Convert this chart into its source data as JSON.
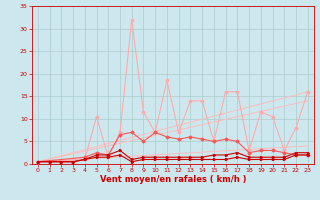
{
  "xlabel": "Vent moyen/en rafales ( km/h )",
  "xlabel_color": "#cc0000",
  "bg_color": "#cce8ee",
  "grid_color": "#aacccc",
  "xlim": [
    -0.5,
    23.5
  ],
  "ylim": [
    0,
    35
  ],
  "xticks": [
    0,
    1,
    2,
    3,
    4,
    5,
    6,
    7,
    8,
    9,
    10,
    11,
    12,
    13,
    14,
    15,
    16,
    17,
    18,
    19,
    20,
    21,
    22,
    23
  ],
  "yticks": [
    0,
    5,
    10,
    15,
    20,
    25,
    30,
    35
  ],
  "line3_x": [
    0,
    4,
    5,
    6,
    7,
    8,
    9,
    10,
    11,
    12,
    13,
    14,
    15,
    16,
    17,
    18,
    19,
    20,
    21,
    22,
    23
  ],
  "line3_y": [
    0.5,
    1,
    10.5,
    1.5,
    7,
    32,
    11.5,
    7,
    18.5,
    7,
    14,
    14,
    5,
    16,
    16,
    3,
    11.5,
    10.5,
    3,
    8,
    16
  ],
  "line4_x": [
    0,
    4,
    5,
    6,
    7,
    8,
    9,
    10,
    11,
    12,
    13,
    14,
    15,
    16,
    17,
    18,
    19,
    20,
    21,
    22,
    23
  ],
  "line4_y": [
    0.5,
    1.5,
    2.5,
    2,
    6.5,
    7,
    5,
    7,
    6,
    5.5,
    6,
    5.5,
    5,
    5.5,
    5,
    2.5,
    3,
    3,
    2.5,
    2,
    2
  ],
  "line1_x": [
    0,
    1,
    2,
    3,
    4,
    5,
    6,
    7,
    8,
    9,
    10,
    11,
    12,
    13,
    14,
    15,
    16,
    17,
    18,
    19,
    20,
    21,
    22,
    23
  ],
  "line1_y": [
    0.5,
    0.5,
    0.5,
    0.5,
    1,
    1.5,
    1.5,
    2,
    0.5,
    1,
    1,
    1,
    1,
    1,
    1,
    1,
    1,
    1.5,
    1,
    1,
    1,
    1,
    2,
    2
  ],
  "line2_x": [
    0,
    1,
    2,
    3,
    4,
    5,
    6,
    7,
    8,
    9,
    10,
    11,
    12,
    13,
    14,
    15,
    16,
    17,
    18,
    19,
    20,
    21,
    22,
    23
  ],
  "line2_y": [
    0.5,
    0.5,
    0.5,
    0.5,
    1,
    2,
    2,
    3,
    1,
    1.5,
    1.5,
    1.5,
    1.5,
    1.5,
    1.5,
    2,
    2,
    2.5,
    1.5,
    1.5,
    1.5,
    1.5,
    2.5,
    2.5
  ],
  "trend1_x": [
    0,
    23
  ],
  "trend1_y": [
    0.5,
    16
  ],
  "trend2_x": [
    0,
    23
  ],
  "trend2_y": [
    0.5,
    14
  ],
  "trend3_x": [
    0,
    23
  ],
  "trend3_y": [
    0.5,
    4
  ]
}
